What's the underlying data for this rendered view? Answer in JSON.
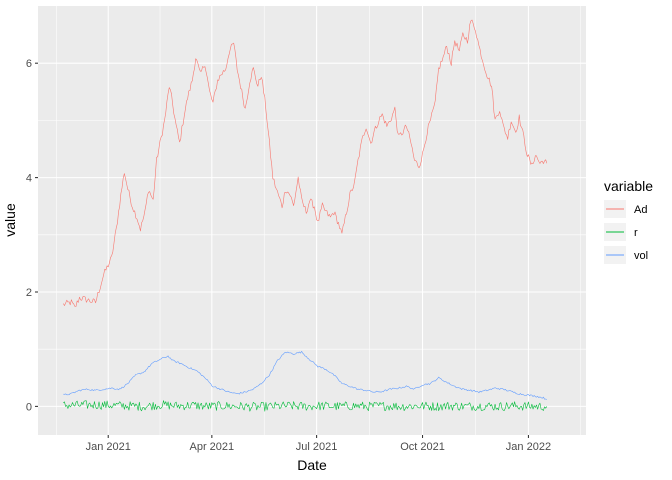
{
  "chart_data": {
    "type": "line",
    "title": "",
    "xlabel": "Date",
    "ylabel": "value",
    "x_ticks": [
      {
        "date": "2021-01-01",
        "label": "Jan 2021"
      },
      {
        "date": "2021-04-01",
        "label": "Apr 2021"
      },
      {
        "date": "2021-07-01",
        "label": "Jul 2021"
      },
      {
        "date": "2021-10-01",
        "label": "Oct 2021"
      },
      {
        "date": "2022-01-01",
        "label": "Jan 2022"
      }
    ],
    "y_ticks": [
      0,
      2,
      4,
      6
    ],
    "xlim": [
      "2020-11-01",
      "2022-02-20"
    ],
    "ylim": [
      -0.5,
      7.0
    ],
    "grid": true,
    "background": "#EBEBEB",
    "legend": {
      "title": "variable",
      "placement": "right"
    },
    "series": [
      {
        "name": "Ad",
        "color": "#F8766D",
        "points": [
          [
            "2020-11-23",
            1.78
          ],
          [
            "2020-11-30",
            1.82
          ],
          [
            "2020-12-03",
            1.72
          ],
          [
            "2020-12-07",
            1.9
          ],
          [
            "2020-12-14",
            1.86
          ],
          [
            "2020-12-21",
            1.82
          ],
          [
            "2020-12-28",
            2.3
          ],
          [
            "2021-01-04",
            2.6
          ],
          [
            "2021-01-08",
            3.1
          ],
          [
            "2021-01-12",
            3.7
          ],
          [
            "2021-01-15",
            4.1
          ],
          [
            "2021-01-18",
            3.8
          ],
          [
            "2021-01-22",
            3.5
          ],
          [
            "2021-01-26",
            3.3
          ],
          [
            "2021-01-29",
            3.1
          ],
          [
            "2021-02-02",
            3.4
          ],
          [
            "2021-02-05",
            3.8
          ],
          [
            "2021-02-09",
            3.6
          ],
          [
            "2021-02-12",
            4.3
          ],
          [
            "2021-02-16",
            4.7
          ],
          [
            "2021-02-19",
            5.0
          ],
          [
            "2021-02-23",
            5.6
          ],
          [
            "2021-02-25",
            5.4
          ],
          [
            "2021-03-01",
            4.9
          ],
          [
            "2021-03-04",
            4.6
          ],
          [
            "2021-03-08",
            5.1
          ],
          [
            "2021-03-11",
            5.4
          ],
          [
            "2021-03-15",
            5.7
          ],
          [
            "2021-03-18",
            6.1
          ],
          [
            "2021-03-22",
            5.8
          ],
          [
            "2021-03-26",
            6.0
          ],
          [
            "2021-03-30",
            5.5
          ],
          [
            "2021-04-02",
            5.3
          ],
          [
            "2021-04-06",
            5.7
          ],
          [
            "2021-04-09",
            5.8
          ],
          [
            "2021-04-13",
            5.9
          ],
          [
            "2021-04-16",
            6.2
          ],
          [
            "2021-04-20",
            6.35
          ],
          [
            "2021-04-23",
            5.9
          ],
          [
            "2021-04-27",
            5.5
          ],
          [
            "2021-04-30",
            5.2
          ],
          [
            "2021-05-04",
            5.7
          ],
          [
            "2021-05-07",
            5.9
          ],
          [
            "2021-05-11",
            5.6
          ],
          [
            "2021-05-14",
            5.8
          ],
          [
            "2021-05-18",
            5.2
          ],
          [
            "2021-05-21",
            4.6
          ],
          [
            "2021-05-24",
            4.0
          ],
          [
            "2021-05-27",
            3.8
          ],
          [
            "2021-06-01",
            3.5
          ],
          [
            "2021-06-04",
            3.8
          ],
          [
            "2021-06-08",
            3.7
          ],
          [
            "2021-06-11",
            3.5
          ],
          [
            "2021-06-15",
            4.0
          ],
          [
            "2021-06-18",
            3.6
          ],
          [
            "2021-06-22",
            3.4
          ],
          [
            "2021-06-25",
            3.6
          ],
          [
            "2021-06-29",
            3.5
          ],
          [
            "2021-07-02",
            3.2
          ],
          [
            "2021-07-06",
            3.5
          ],
          [
            "2021-07-09",
            3.4
          ],
          [
            "2021-07-13",
            3.3
          ],
          [
            "2021-07-16",
            3.4
          ],
          [
            "2021-07-20",
            3.2
          ],
          [
            "2021-07-23",
            3.0
          ],
          [
            "2021-07-27",
            3.4
          ],
          [
            "2021-07-30",
            3.7
          ],
          [
            "2021-08-03",
            3.9
          ],
          [
            "2021-08-06",
            4.3
          ],
          [
            "2021-08-10",
            4.7
          ],
          [
            "2021-08-13",
            4.9
          ],
          [
            "2021-08-17",
            4.6
          ],
          [
            "2021-08-20",
            4.8
          ],
          [
            "2021-08-24",
            5.0
          ],
          [
            "2021-08-27",
            5.1
          ],
          [
            "2021-08-31",
            4.9
          ],
          [
            "2021-09-03",
            5.0
          ],
          [
            "2021-09-07",
            5.2
          ],
          [
            "2021-09-10",
            4.7
          ],
          [
            "2021-09-14",
            4.8
          ],
          [
            "2021-09-17",
            4.9
          ],
          [
            "2021-09-21",
            4.6
          ],
          [
            "2021-09-24",
            4.3
          ],
          [
            "2021-09-28",
            4.2
          ],
          [
            "2021-10-01",
            4.4
          ],
          [
            "2021-10-05",
            4.8
          ],
          [
            "2021-10-08",
            5.0
          ],
          [
            "2021-10-12",
            5.3
          ],
          [
            "2021-10-15",
            5.9
          ],
          [
            "2021-10-19",
            6.1
          ],
          [
            "2021-10-22",
            6.3
          ],
          [
            "2021-10-26",
            6.0
          ],
          [
            "2021-10-29",
            6.4
          ],
          [
            "2021-11-02",
            6.2
          ],
          [
            "2021-11-05",
            6.5
          ],
          [
            "2021-11-09",
            6.4
          ],
          [
            "2021-11-12",
            6.75
          ],
          [
            "2021-11-16",
            6.6
          ],
          [
            "2021-11-19",
            6.3
          ],
          [
            "2021-11-23",
            6.0
          ],
          [
            "2021-11-26",
            5.8
          ],
          [
            "2021-11-30",
            5.6
          ],
          [
            "2021-12-03",
            5.0
          ],
          [
            "2021-12-07",
            5.2
          ],
          [
            "2021-12-10",
            4.9
          ],
          [
            "2021-12-14",
            4.7
          ],
          [
            "2021-12-17",
            5.0
          ],
          [
            "2021-12-21",
            4.8
          ],
          [
            "2021-12-24",
            5.05
          ],
          [
            "2021-12-28",
            4.7
          ],
          [
            "2021-12-31",
            4.4
          ],
          [
            "2022-01-04",
            4.2
          ],
          [
            "2022-01-07",
            4.4
          ],
          [
            "2022-01-11",
            4.25
          ],
          [
            "2022-01-14",
            4.3
          ],
          [
            "2022-01-17",
            4.25
          ]
        ]
      },
      {
        "name": "r",
        "color": "#00BA38",
        "points": [
          [
            "2020-11-23",
            0.02
          ],
          [
            "2020-12-07",
            0.02
          ],
          [
            "2020-12-21",
            0.03
          ],
          [
            "2021-01-04",
            0.02
          ],
          [
            "2021-01-18",
            0.01
          ],
          [
            "2021-02-01",
            0.0
          ],
          [
            "2021-02-15",
            0.03
          ],
          [
            "2021-03-01",
            0.01
          ],
          [
            "2021-03-15",
            0.02
          ],
          [
            "2021-03-29",
            0.0
          ],
          [
            "2021-04-12",
            0.01
          ],
          [
            "2021-04-26",
            0.0
          ],
          [
            "2021-05-10",
            -0.01
          ],
          [
            "2021-05-24",
            0.0
          ],
          [
            "2021-06-07",
            0.01
          ],
          [
            "2021-06-21",
            0.0
          ],
          [
            "2021-07-05",
            0.01
          ],
          [
            "2021-07-19",
            0.0
          ],
          [
            "2021-08-02",
            0.01
          ],
          [
            "2021-08-16",
            0.0
          ],
          [
            "2021-08-30",
            0.01
          ],
          [
            "2021-09-13",
            0.0
          ],
          [
            "2021-09-27",
            0.01
          ],
          [
            "2021-10-11",
            0.0
          ],
          [
            "2021-10-25",
            0.01
          ],
          [
            "2021-11-08",
            0.0
          ],
          [
            "2021-11-22",
            0.01
          ],
          [
            "2021-12-06",
            0.0
          ],
          [
            "2021-12-20",
            0.01
          ],
          [
            "2022-01-03",
            0.0
          ],
          [
            "2022-01-17",
            0.0
          ]
        ],
        "noise_amplitude": 0.08
      },
      {
        "name": "vol",
        "color": "#619CFF",
        "points": [
          [
            "2020-11-23",
            0.2
          ],
          [
            "2020-11-30",
            0.22
          ],
          [
            "2020-12-07",
            0.28
          ],
          [
            "2020-12-14",
            0.3
          ],
          [
            "2020-12-21",
            0.28
          ],
          [
            "2020-12-28",
            0.3
          ],
          [
            "2021-01-04",
            0.32
          ],
          [
            "2021-01-11",
            0.3
          ],
          [
            "2021-01-18",
            0.4
          ],
          [
            "2021-01-25",
            0.55
          ],
          [
            "2021-02-01",
            0.6
          ],
          [
            "2021-02-08",
            0.75
          ],
          [
            "2021-02-15",
            0.82
          ],
          [
            "2021-02-22",
            0.88
          ],
          [
            "2021-02-26",
            0.8
          ],
          [
            "2021-03-05",
            0.75
          ],
          [
            "2021-03-12",
            0.68
          ],
          [
            "2021-03-19",
            0.62
          ],
          [
            "2021-03-26",
            0.5
          ],
          [
            "2021-04-02",
            0.35
          ],
          [
            "2021-04-09",
            0.3
          ],
          [
            "2021-04-16",
            0.25
          ],
          [
            "2021-04-23",
            0.22
          ],
          [
            "2021-04-30",
            0.25
          ],
          [
            "2021-05-07",
            0.3
          ],
          [
            "2021-05-14",
            0.4
          ],
          [
            "2021-05-21",
            0.55
          ],
          [
            "2021-05-28",
            0.8
          ],
          [
            "2021-06-04",
            0.95
          ],
          [
            "2021-06-11",
            0.92
          ],
          [
            "2021-06-18",
            0.95
          ],
          [
            "2021-06-25",
            0.82
          ],
          [
            "2021-07-02",
            0.7
          ],
          [
            "2021-07-09",
            0.65
          ],
          [
            "2021-07-16",
            0.55
          ],
          [
            "2021-07-23",
            0.4
          ],
          [
            "2021-07-30",
            0.35
          ],
          [
            "2021-08-06",
            0.3
          ],
          [
            "2021-08-13",
            0.28
          ],
          [
            "2021-08-20",
            0.25
          ],
          [
            "2021-08-27",
            0.26
          ],
          [
            "2021-09-03",
            0.3
          ],
          [
            "2021-09-10",
            0.32
          ],
          [
            "2021-09-17",
            0.35
          ],
          [
            "2021-09-24",
            0.3
          ],
          [
            "2021-10-01",
            0.38
          ],
          [
            "2021-10-08",
            0.4
          ],
          [
            "2021-10-15",
            0.5
          ],
          [
            "2021-10-22",
            0.42
          ],
          [
            "2021-10-29",
            0.35
          ],
          [
            "2021-11-05",
            0.3
          ],
          [
            "2021-11-12",
            0.28
          ],
          [
            "2021-11-19",
            0.25
          ],
          [
            "2021-11-26",
            0.28
          ],
          [
            "2021-12-03",
            0.32
          ],
          [
            "2021-12-10",
            0.3
          ],
          [
            "2021-12-17",
            0.26
          ],
          [
            "2021-12-24",
            0.22
          ],
          [
            "2021-12-31",
            0.2
          ],
          [
            "2022-01-07",
            0.18
          ],
          [
            "2022-01-14",
            0.15
          ],
          [
            "2022-01-17",
            0.12
          ]
        ]
      }
    ]
  }
}
